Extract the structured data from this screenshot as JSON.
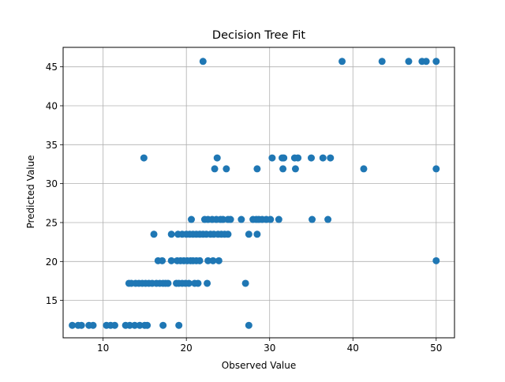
{
  "chart_data": {
    "type": "scatter",
    "title": "Decision Tree Fit",
    "xlabel": "Observed Value",
    "ylabel": "Predicted Value",
    "xlim": [
      5.2,
      52.2
    ],
    "ylim": [
      10.2,
      47.5
    ],
    "xticks": [
      10,
      20,
      30,
      40,
      50
    ],
    "yticks": [
      15,
      20,
      25,
      30,
      35,
      40,
      45
    ],
    "grid": true,
    "marker_color": "#1f77b4",
    "series": [
      {
        "x": [
          22.0,
          38.7,
          43.5,
          46.7,
          48.3,
          48.8,
          50.0,
          14.9,
          23.7,
          30.3,
          31.5,
          31.7,
          33.0,
          33.4,
          35.0,
          36.4,
          37.3,
          23.4,
          24.8,
          28.5,
          31.6,
          33.1,
          41.3,
          50.0,
          20.6,
          22.2,
          22.6,
          23.1,
          23.6,
          24.1,
          24.4,
          25.0,
          25.3,
          26.6,
          28.0,
          28.4,
          28.7,
          29.1,
          29.6,
          30.1,
          31.1,
          35.1,
          37.0,
          16.1,
          18.2,
          19.0,
          19.5,
          20.0,
          20.4,
          20.8,
          21.2,
          21.6,
          22.0,
          22.4,
          22.9,
          23.3,
          23.8,
          24.2,
          24.6,
          25.0,
          27.5,
          28.5,
          16.6,
          17.1,
          18.2,
          18.9,
          19.3,
          19.7,
          20.1,
          20.5,
          20.8,
          21.2,
          21.6,
          22.6,
          23.2,
          23.9,
          50.0,
          13.1,
          13.4,
          13.9,
          14.3,
          14.7,
          15.1,
          15.5,
          15.9,
          16.4,
          16.8,
          17.2,
          17.5,
          17.8,
          18.8,
          19.1,
          19.5,
          19.9,
          20.3,
          21.0,
          21.4,
          22.5,
          27.1,
          6.3,
          7.0,
          7.4,
          8.3,
          8.8,
          10.4,
          10.9,
          11.4,
          12.7,
          13.2,
          13.8,
          14.4,
          15.0,
          15.3,
          17.2,
          19.1,
          27.5
        ]
      }
    ],
    "series_y_groups": [
      {
        "y": 45.7,
        "count": 7
      },
      {
        "y": 33.3,
        "count": 10
      },
      {
        "y": 31.9,
        "count": 7
      },
      {
        "y": 25.4,
        "count": 19
      },
      {
        "y": 23.5,
        "count": 19
      },
      {
        "y": 20.1,
        "count": 15
      },
      {
        "y": 17.2,
        "count": 22
      },
      {
        "y": 11.8,
        "count": 17
      }
    ]
  }
}
